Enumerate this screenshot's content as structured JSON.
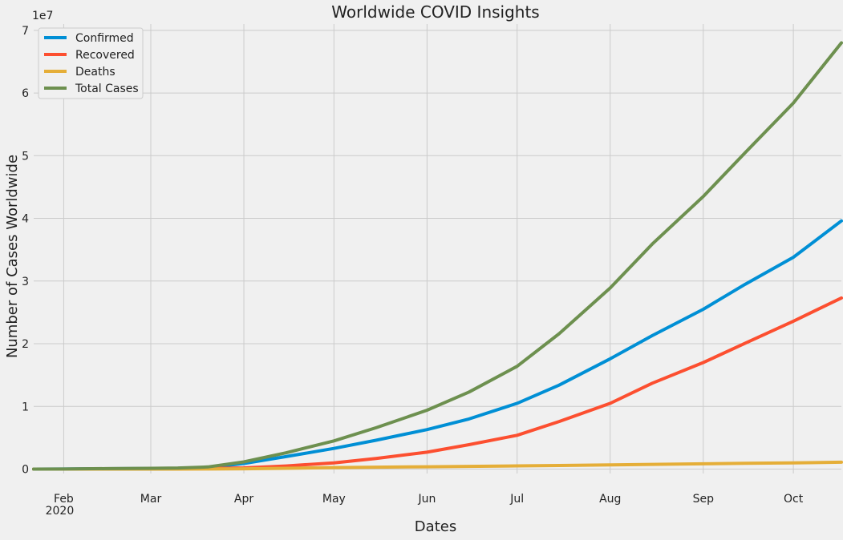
{
  "chart_data": {
    "type": "line",
    "title": "Worldwide COVID Insights",
    "xlabel": "Dates",
    "ylabel": "Number of Cases Worldwide",
    "y_scale_label": "1e7",
    "y_unit_multiplier": 10000000,
    "xlim": [
      "2020-01-22",
      "2020-10-17"
    ],
    "ylim": [
      -0.07,
      7.1
    ],
    "yticks": [
      0,
      1,
      2,
      3,
      4,
      5,
      6,
      7
    ],
    "yticks_labels": [
      "0",
      "1",
      "2",
      "3",
      "4",
      "5",
      "6",
      "7"
    ],
    "xticks": [
      {
        "date": "2020-02-01",
        "label": "Feb",
        "sublabel": "2020"
      },
      {
        "date": "2020-03-01",
        "label": "Mar",
        "sublabel": ""
      },
      {
        "date": "2020-04-01",
        "label": "Apr",
        "sublabel": ""
      },
      {
        "date": "2020-05-01",
        "label": "May",
        "sublabel": ""
      },
      {
        "date": "2020-06-01",
        "label": "Jun",
        "sublabel": ""
      },
      {
        "date": "2020-07-01",
        "label": "Jul",
        "sublabel": ""
      },
      {
        "date": "2020-08-01",
        "label": "Aug",
        "sublabel": ""
      },
      {
        "date": "2020-09-01",
        "label": "Sep",
        "sublabel": ""
      },
      {
        "date": "2020-10-01",
        "label": "Oct",
        "sublabel": ""
      }
    ],
    "grid": true,
    "legend_position": "top-left",
    "x": [
      "2020-01-22",
      "2020-02-01",
      "2020-02-15",
      "2020-03-01",
      "2020-03-10",
      "2020-03-20",
      "2020-04-01",
      "2020-04-15",
      "2020-05-01",
      "2020-05-15",
      "2020-06-01",
      "2020-06-15",
      "2020-07-01",
      "2020-07-15",
      "2020-08-01",
      "2020-08-15",
      "2020-09-01",
      "2020-09-15",
      "2020-10-01",
      "2020-10-17"
    ],
    "series": [
      {
        "name": "Confirmed",
        "color": "#008fd5",
        "values": [
          0.0,
          0.001,
          0.007,
          0.009,
          0.012,
          0.025,
          0.09,
          0.2,
          0.33,
          0.46,
          0.63,
          0.8,
          1.05,
          1.34,
          1.76,
          2.13,
          2.55,
          2.95,
          3.38,
          3.96
        ]
      },
      {
        "name": "Recovered",
        "color": "#fc4f30",
        "values": [
          0.0,
          0.0002,
          0.001,
          0.004,
          0.006,
          0.009,
          0.02,
          0.05,
          0.1,
          0.17,
          0.27,
          0.39,
          0.54,
          0.76,
          1.05,
          1.37,
          1.7,
          2.01,
          2.36,
          2.73
        ]
      },
      {
        "name": "Deaths",
        "color": "#e5ae38",
        "values": [
          0.0,
          3e-05,
          0.0002,
          0.0003,
          0.0004,
          0.0011,
          0.005,
          0.013,
          0.024,
          0.031,
          0.037,
          0.044,
          0.051,
          0.058,
          0.067,
          0.076,
          0.085,
          0.093,
          0.1,
          0.11
        ]
      },
      {
        "name": "Total Cases",
        "color": "#6d904f",
        "values": [
          0.0,
          0.001,
          0.008,
          0.013,
          0.018,
          0.035,
          0.115,
          0.26,
          0.45,
          0.66,
          0.94,
          1.23,
          1.64,
          2.16,
          2.89,
          3.59,
          4.35,
          5.05,
          5.84,
          6.8
        ]
      }
    ]
  }
}
